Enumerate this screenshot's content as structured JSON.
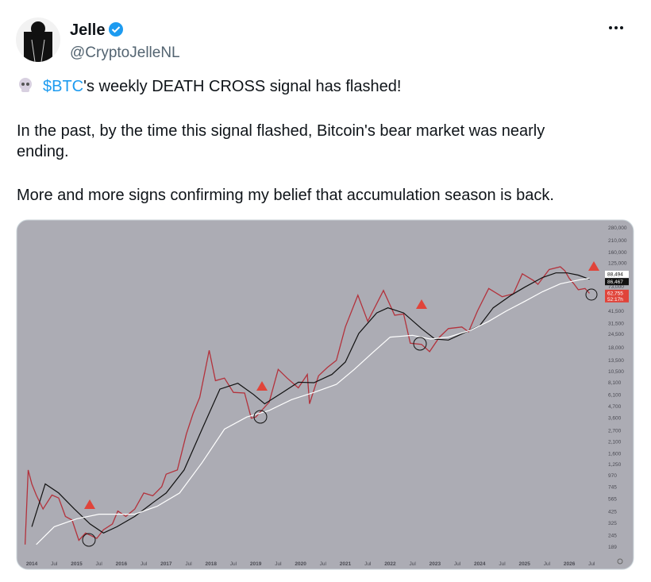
{
  "user": {
    "name": "Jelle",
    "handle": "@CryptoJelleNL"
  },
  "tweet": {
    "cashtag": "$BTC",
    "line1_rest": "'s weekly DEATH CROSS signal has flashed!",
    "line2a": "In the past, by the time this signal flashed, Bitcoin's bear market was nearly",
    "line2b": "ending.",
    "line3": "More and more signs confirming my belief that accumulation season is back."
  },
  "chart_data": {
    "type": "line",
    "log_scale": true,
    "grid": false,
    "xlim": [
      2013.68,
      2026.76
    ],
    "ylim": [
      141,
      330000
    ],
    "xticks": [
      2014,
      {
        "value": 2014.5,
        "label": "Jul"
      },
      2015,
      {
        "value": 2015.5,
        "label": "Jul"
      },
      2016,
      {
        "value": 2016.5,
        "label": "Jul"
      },
      2017,
      {
        "value": 2017.5,
        "label": "Jul"
      },
      2018,
      {
        "value": 2018.5,
        "label": "Jul"
      },
      2019,
      {
        "value": 2019.5,
        "label": "Jul"
      },
      2020,
      {
        "value": 2020.5,
        "label": "Jul"
      },
      2021,
      {
        "value": 2021.5,
        "label": "Jul"
      },
      2022,
      {
        "value": 2022.5,
        "label": "Jul"
      },
      2023,
      {
        "value": 2023.5,
        "label": "Jul"
      },
      2024,
      {
        "value": 2024.5,
        "label": "Jul"
      },
      2025,
      {
        "value": 2025.5,
        "label": "Jul"
      },
      2026,
      {
        "value": 2026.5,
        "label": "Jul"
      }
    ],
    "yticks": [
      {
        "value": 280000,
        "label": "280,000"
      },
      {
        "value": 210000,
        "label": "210,000"
      },
      {
        "value": 160000,
        "label": "160,000"
      },
      {
        "value": 125000,
        "label": "125,000"
      },
      {
        "value": 73000,
        "label": "73,000"
      },
      {
        "value": 41500,
        "label": "41,500"
      },
      {
        "value": 31500,
        "label": "31,500"
      },
      {
        "value": 24500,
        "label": "24,500"
      },
      {
        "value": 18000,
        "label": "18,000"
      },
      {
        "value": 13500,
        "label": "13,500"
      },
      {
        "value": 10500,
        "label": "10,500"
      },
      {
        "value": 8100,
        "label": "8,100"
      },
      {
        "value": 6100,
        "label": "6,100"
      },
      {
        "value": 4700,
        "label": "4,700"
      },
      {
        "value": 3600,
        "label": "3,600"
      },
      {
        "value": 2700,
        "label": "2,700"
      },
      {
        "value": 2100,
        "label": "2,100"
      },
      {
        "value": 1600,
        "label": "1,600"
      },
      {
        "value": 1250,
        "label": "1,250"
      },
      970,
      745,
      565,
      425,
      325,
      245,
      189
    ],
    "series": [
      {
        "color": "#b3323c",
        "x": [
          2013.85,
          2013.92,
          2014.0,
          2014.1,
          2014.25,
          2014.45,
          2014.6,
          2014.75,
          2014.9,
          2015.05,
          2015.2,
          2015.45,
          2015.6,
          2015.8,
          2015.92,
          2016.1,
          2016.3,
          2016.5,
          2016.7,
          2016.9,
          2017.0,
          2017.25,
          2017.45,
          2017.6,
          2017.75,
          2017.96,
          2018.1,
          2018.3,
          2018.5,
          2018.75,
          2018.9,
          2019.0,
          2019.3,
          2019.5,
          2019.7,
          2019.95,
          2020.15,
          2020.2,
          2020.4,
          2020.6,
          2020.8,
          2021.0,
          2021.28,
          2021.5,
          2021.85,
          2022.1,
          2022.3,
          2022.45,
          2022.7,
          2022.88,
          2023.1,
          2023.3,
          2023.6,
          2023.75,
          2023.95,
          2024.2,
          2024.5,
          2024.75,
          2024.95,
          2025.2,
          2025.3,
          2025.55,
          2025.8,
          2025.9,
          2026.0,
          2026.1,
          2026.2,
          2026.35,
          2026.45
        ],
        "values": [
          200,
          1100,
          800,
          620,
          450,
          620,
          580,
          380,
          350,
          220,
          260,
          230,
          280,
          320,
          430,
          380,
          450,
          650,
          610,
          750,
          1000,
          1100,
          2500,
          4000,
          5800,
          17000,
          8500,
          9000,
          6500,
          6400,
          3600,
          3700,
          5200,
          11000,
          9000,
          7200,
          9800,
          5000,
          9500,
          11500,
          13500,
          29000,
          60000,
          33000,
          67000,
          38000,
          39000,
          20000,
          19500,
          16500,
          23000,
          28000,
          29000,
          26000,
          42000,
          70000,
          58000,
          62000,
          98000,
          84000,
          77000,
          108000,
          115000,
          105000,
          88000,
          78000,
          68000,
          70000,
          62755
        ],
        "end_label": "62,755",
        "sub_label": "52:17h"
      },
      {
        "color": "#111111",
        "x": [
          2014.0,
          2014.3,
          2014.6,
          2014.95,
          2015.3,
          2015.6,
          2015.9,
          2016.3,
          2016.7,
          2017.0,
          2017.4,
          2017.8,
          2018.2,
          2018.6,
          2018.95,
          2019.2,
          2019.6,
          2019.95,
          2020.3,
          2020.7,
          2021.0,
          2021.3,
          2021.7,
          2021.95,
          2022.3,
          2022.7,
          2023.0,
          2023.3,
          2023.7,
          2024.0,
          2024.3,
          2024.7,
          2025.0,
          2025.4,
          2025.7,
          2025.95,
          2026.2,
          2026.45
        ],
        "values": [
          300,
          800,
          650,
          450,
          320,
          260,
          300,
          380,
          520,
          650,
          1100,
          2800,
          7000,
          8000,
          6200,
          5000,
          6500,
          8200,
          8100,
          9800,
          13000,
          25000,
          40000,
          45000,
          40000,
          28000,
          22000,
          21500,
          26000,
          30000,
          45000,
          60000,
          72000,
          90000,
          100000,
          100000,
          95000,
          86467
        ],
        "end_label": "86,467"
      },
      {
        "color": "#ffffff",
        "x": [
          2014.1,
          2014.5,
          2015.0,
          2015.5,
          2015.9,
          2016.3,
          2016.8,
          2017.3,
          2017.8,
          2018.3,
          2018.8,
          2019.3,
          2019.8,
          2020.3,
          2020.8,
          2021.2,
          2021.6,
          2022.0,
          2022.5,
          2022.9,
          2023.3,
          2023.8,
          2024.2,
          2024.6,
          2025.0,
          2025.4,
          2025.8,
          2026.2,
          2026.45
        ],
        "values": [
          200,
          300,
          360,
          400,
          400,
          400,
          480,
          650,
          1300,
          2800,
          3700,
          4300,
          5500,
          6500,
          7800,
          11000,
          16000,
          23000,
          24000,
          22000,
          23000,
          27000,
          33000,
          42000,
          52000,
          65000,
          78000,
          85000,
          88494
        ],
        "end_label": "88,494"
      }
    ]
  }
}
